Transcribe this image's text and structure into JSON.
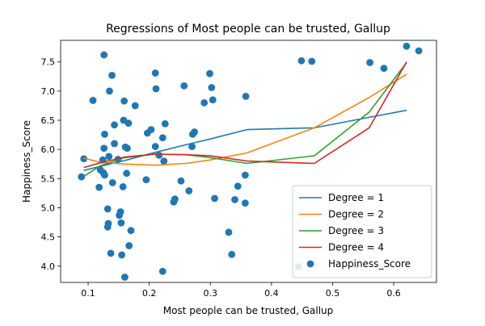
{
  "chart_data": {
    "type": "scatter",
    "title": "Regressions of Most people can be trusted, Gallup",
    "xlabel": "Most people can be trusted, Gallup",
    "ylabel": "Happiness_Score",
    "xlim": [
      0.055,
      0.67
    ],
    "ylim": [
      3.72,
      7.87
    ],
    "x_ticks": [
      0.1,
      0.2,
      0.3,
      0.4,
      0.5,
      0.6
    ],
    "x_tick_labels": [
      "0.1",
      "0.2",
      "0.3",
      "0.4",
      "0.5",
      "0.6"
    ],
    "y_ticks": [
      4.0,
      4.5,
      5.0,
      5.5,
      6.0,
      6.5,
      7.0,
      7.5
    ],
    "y_tick_labels": [
      "4.0",
      "4.5",
      "5.0",
      "5.5",
      "6.0",
      "6.5",
      "7.0",
      "7.5"
    ],
    "grid": false,
    "legend_position": "lower right",
    "scatter": {
      "name": "Happiness_Score",
      "color": "#1f77b4",
      "points": [
        [
          0.089,
          5.53
        ],
        [
          0.093,
          5.84
        ],
        [
          0.108,
          6.84
        ],
        [
          0.118,
          5.35
        ],
        [
          0.12,
          5.65
        ],
        [
          0.124,
          5.82
        ],
        [
          0.125,
          5.6
        ],
        [
          0.126,
          7.62
        ],
        [
          0.127,
          5.56
        ],
        [
          0.127,
          6.26
        ],
        [
          0.126,
          6.02
        ],
        [
          0.132,
          4.67
        ],
        [
          0.132,
          4.98
        ],
        [
          0.133,
          4.73
        ],
        [
          0.134,
          5.88
        ],
        [
          0.135,
          7.0
        ],
        [
          0.137,
          4.22
        ],
        [
          0.139,
          7.27
        ],
        [
          0.14,
          5.43
        ],
        [
          0.143,
          6.42
        ],
        [
          0.143,
          6.1
        ],
        [
          0.149,
          5.83
        ],
        [
          0.151,
          4.87
        ],
        [
          0.153,
          4.93
        ],
        [
          0.154,
          4.74
        ],
        [
          0.155,
          4.19
        ],
        [
          0.157,
          5.36
        ],
        [
          0.158,
          6.5
        ],
        [
          0.159,
          6.83
        ],
        [
          0.16,
          3.81
        ],
        [
          0.161,
          6.04
        ],
        [
          0.163,
          5.59
        ],
        [
          0.164,
          6.02
        ],
        [
          0.166,
          6.45
        ],
        [
          0.167,
          4.35
        ],
        [
          0.17,
          4.61
        ],
        [
          0.177,
          6.75
        ],
        [
          0.195,
          5.48
        ],
        [
          0.197,
          6.28
        ],
        [
          0.203,
          6.34
        ],
        [
          0.21,
          7.31
        ],
        [
          0.21,
          6.05
        ],
        [
          0.211,
          7.04
        ],
        [
          0.216,
          5.9
        ],
        [
          0.222,
          3.91
        ],
        [
          0.222,
          6.2
        ],
        [
          0.224,
          5.8
        ],
        [
          0.226,
          6.44
        ],
        [
          0.24,
          5.1
        ],
        [
          0.242,
          5.15
        ],
        [
          0.252,
          5.46
        ],
        [
          0.257,
          7.09
        ],
        [
          0.265,
          5.29
        ],
        [
          0.27,
          6.05
        ],
        [
          0.271,
          6.26
        ],
        [
          0.274,
          6.3
        ],
        [
          0.29,
          6.8
        ],
        [
          0.299,
          7.3
        ],
        [
          0.302,
          7.06
        ],
        [
          0.304,
          6.85
        ],
        [
          0.307,
          5.16
        ],
        [
          0.33,
          4.58
        ],
        [
          0.335,
          4.2
        ],
        [
          0.34,
          5.14
        ],
        [
          0.345,
          5.37
        ],
        [
          0.357,
          5.56
        ],
        [
          0.358,
          6.91
        ],
        [
          0.357,
          5.08
        ],
        [
          0.444,
          3.99
        ],
        [
          0.449,
          7.52
        ],
        [
          0.466,
          7.51
        ],
        [
          0.561,
          7.49
        ],
        [
          0.584,
          7.39
        ],
        [
          0.621,
          7.77
        ],
        [
          0.641,
          7.69
        ]
      ]
    },
    "series": [
      {
        "name": "Degree = 1",
        "color": "#1f77b4",
        "x": [
          0.093,
          0.12,
          0.16,
          0.21,
          0.26,
          0.3,
          0.36,
          0.47,
          0.56,
          0.621
        ],
        "y": [
          5.64,
          5.71,
          5.81,
          5.95,
          6.08,
          6.18,
          6.34,
          6.37,
          6.55,
          6.67
        ]
      },
      {
        "name": "Degree = 2",
        "color": "#ff7f0e",
        "x": [
          0.093,
          0.12,
          0.16,
          0.21,
          0.26,
          0.3,
          0.36,
          0.47,
          0.56,
          0.621
        ],
        "y": [
          5.85,
          5.78,
          5.75,
          5.73,
          5.76,
          5.82,
          5.94,
          6.37,
          6.89,
          7.29
        ]
      },
      {
        "name": "Degree = 3",
        "color": "#2ca02c",
        "x": [
          0.093,
          0.12,
          0.16,
          0.21,
          0.26,
          0.3,
          0.36,
          0.47,
          0.56,
          0.621
        ],
        "y": [
          5.54,
          5.72,
          5.86,
          5.92,
          5.91,
          5.86,
          5.76,
          5.89,
          6.64,
          7.49
        ]
      },
      {
        "name": "Degree = 4",
        "color": "#d62728",
        "x": [
          0.093,
          0.12,
          0.16,
          0.21,
          0.26,
          0.3,
          0.36,
          0.47,
          0.56,
          0.621
        ],
        "y": [
          5.69,
          5.77,
          5.87,
          5.92,
          5.91,
          5.89,
          5.8,
          5.76,
          6.37,
          7.5
        ]
      }
    ],
    "legend": [
      {
        "label": "Degree = 1",
        "color": "#1f77b4",
        "kind": "line"
      },
      {
        "label": "Degree = 2",
        "color": "#ff7f0e",
        "kind": "line"
      },
      {
        "label": "Degree = 3",
        "color": "#2ca02c",
        "kind": "line"
      },
      {
        "label": "Degree = 4",
        "color": "#d62728",
        "kind": "line"
      },
      {
        "label": "Happiness_Score",
        "color": "#1f77b4",
        "kind": "marker"
      }
    ]
  }
}
